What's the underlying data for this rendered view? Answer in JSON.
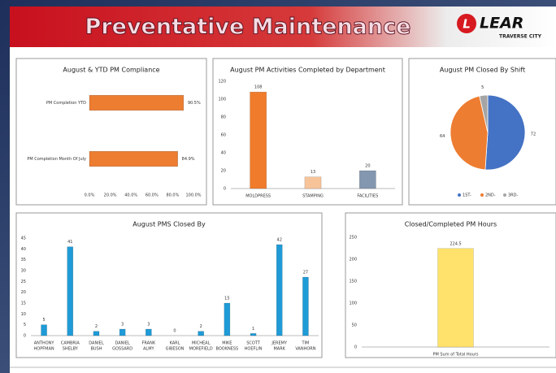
{
  "header": {
    "title": "Preventative Maintenance",
    "logo": "LEAR",
    "location": "TRAVERSE CITY"
  },
  "chart_data": [
    {
      "type": "bar",
      "orientation": "horizontal",
      "title": "August & YTD PM Compliance",
      "categories": [
        "PM Completion YTD",
        "PM Completion Month Of July"
      ],
      "values": [
        90.5,
        84.9
      ],
      "value_labels": [
        "90.5%",
        "84.9%"
      ],
      "color": "#ed7d31",
      "xlim": [
        0,
        100
      ],
      "xticks": [
        {
          "value": 0,
          "label": "0.0%"
        },
        {
          "value": 20,
          "label": "20.0%"
        },
        {
          "value": 40,
          "label": "40.0%"
        },
        {
          "value": 60,
          "label": "60.0%"
        },
        {
          "value": 80,
          "label": "80.0%"
        },
        {
          "value": 100,
          "label": "100.0%"
        }
      ]
    },
    {
      "type": "bar",
      "title": "August PM Activities Completed by Department",
      "categories": [
        "MOLDPRESS",
        "STAMPING",
        "FACILITIES"
      ],
      "values": [
        108,
        13,
        20
      ],
      "colors": [
        "#f07b2a",
        "#f7c49a",
        "#8497b0"
      ],
      "ylim": [
        0,
        120
      ],
      "yticks": [
        0,
        20,
        40,
        60,
        80,
        100,
        120
      ]
    },
    {
      "type": "pie",
      "title": "August PM Closed By Shift",
      "categories": [
        "1ST-",
        "2ND-",
        "3RD-"
      ],
      "values": [
        72,
        64,
        5
      ],
      "colors": [
        "#4472c4",
        "#ed7d31",
        "#a5a5a5"
      ]
    },
    {
      "type": "bar",
      "title": "August PMS Closed By",
      "categories": [
        [
          "ANTHONY",
          "HOPFMAN"
        ],
        [
          "CAMBRIA",
          "SHELBY"
        ],
        [
          "DANIEL",
          "BUSH"
        ],
        [
          "DANIEL",
          "GOSSARD"
        ],
        [
          "FRANK",
          "ALMY"
        ],
        [
          "KARL",
          "GIBESON"
        ],
        [
          "MICHEAL",
          "MOREFIELD"
        ],
        [
          "MIKE",
          "BOOKNESS"
        ],
        [
          "SCOTT",
          "HOEFLIN"
        ],
        [
          "JEREMY",
          "MARK"
        ],
        [
          "TIM",
          "VANHORN"
        ]
      ],
      "values": [
        5,
        41,
        2,
        3,
        3,
        0,
        2,
        15,
        1,
        42,
        27
      ],
      "color": "#1f9bd7",
      "ylim": [
        0,
        45
      ],
      "yticks": [
        0,
        5,
        10,
        15,
        20,
        25,
        30,
        35,
        40,
        45
      ]
    },
    {
      "type": "bar",
      "title": "Closed/Completed PM Hours",
      "categories": [
        "PM Sum of Total Hours"
      ],
      "values": [
        224.5
      ],
      "color": "#ffe26b",
      "ylim": [
        0,
        250
      ],
      "yticks": [
        0,
        50,
        100,
        150,
        200,
        250
      ]
    }
  ]
}
